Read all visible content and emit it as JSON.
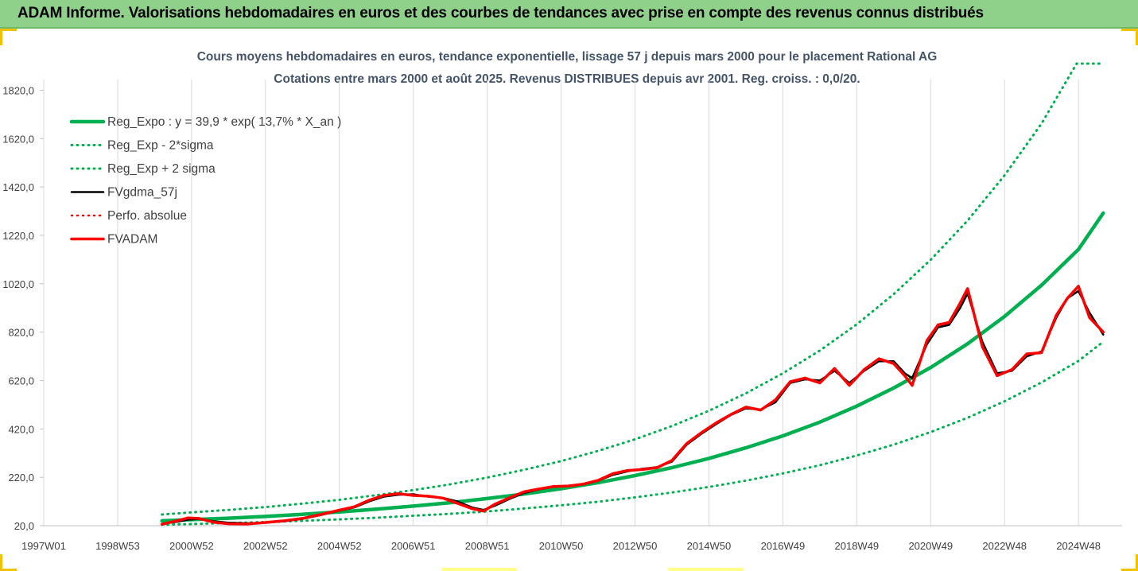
{
  "header": {
    "title": "ADAM Informe. Valorisations hebdomadaires en euros et des courbes de tendances avec prise en compte des revenus connus distribués"
  },
  "colors": {
    "header_bg": "#8fd08a",
    "green": "#00b050",
    "black": "#000000",
    "red": "#ff0000",
    "accent": "#f2c200"
  },
  "chart_data": {
    "type": "line",
    "title": "Cours moyens hebdomadaires en euros, tendance exponentielle, lissage 57 j depuis mars 2000 pour le placement Rational AG",
    "subtitle": "Cotations entre mars 2000 et août 2025. Revenus DISTRIBUES depuis avr 2001. Reg. croiss. : 0,0/20.",
    "x_tick_labels": [
      "1997W01",
      "1998W53",
      "2000W52",
      "2002W52",
      "2004W52",
      "2006W51",
      "2008W51",
      "2010W50",
      "2012W50",
      "2014W50",
      "2016W49",
      "2018W49",
      "2020W49",
      "2022W48",
      "2024W48"
    ],
    "y_tick_labels": [
      "20,0",
      "220,0",
      "420,0",
      "620,0",
      "820,0",
      "1020,0",
      "1220,0",
      "1420,0",
      "1620,0",
      "1820,0"
    ],
    "ylim": [
      20,
      1930
    ],
    "xlim": [
      1997.0,
      2025.75
    ],
    "grid": "vertical",
    "legend_position": "top-left",
    "series": [
      {
        "name": "Reg_Expo : y = 39,9 * exp( 13,7% *  X_an )",
        "color": "#00b050",
        "style": "solid",
        "width": 4.5,
        "x": [
          2000.2,
          2001,
          2002,
          2003,
          2004,
          2005,
          2006,
          2007,
          2008,
          2009,
          2010,
          2011,
          2012,
          2013,
          2014,
          2015,
          2016,
          2017,
          2018,
          2019,
          2020,
          2021,
          2022,
          2023,
          2024,
          2025,
          2025.67
        ],
        "y": [
          40,
          45,
          51,
          58,
          67,
          77,
          88,
          101,
          115,
          132,
          151,
          173,
          198,
          227,
          260,
          298,
          342,
          391,
          448,
          514,
          589,
          674,
          772,
          885,
          1014,
          1162,
          1312
        ]
      },
      {
        "name": "Reg_Exp - 2*sigma",
        "color": "#00b050",
        "style": "dotted",
        "width": 3,
        "x": [
          2000.2,
          2001,
          2002,
          2003,
          2004,
          2005,
          2006,
          2007,
          2008,
          2009,
          2010,
          2011,
          2012,
          2013,
          2014,
          2015,
          2016,
          2017,
          2018,
          2019,
          2020,
          2021,
          2022,
          2023,
          2024,
          2025,
          2025.67
        ],
        "y": [
          24,
          27,
          31,
          35,
          40,
          46,
          53,
          61,
          69,
          79,
          91,
          104,
          119,
          137,
          157,
          180,
          206,
          236,
          270,
          310,
          355,
          407,
          466,
          534,
          612,
          701,
          780
        ]
      },
      {
        "name": "Reg_Exp + 2 sigma",
        "color": "#00b050",
        "style": "dotted",
        "width": 3,
        "x": [
          2000.2,
          2001,
          2002,
          2003,
          2004,
          2005,
          2006,
          2007,
          2008,
          2009,
          2010,
          2011,
          2012,
          2013,
          2014,
          2015,
          2016,
          2017,
          2018,
          2019,
          2020,
          2021,
          2022,
          2023,
          2024,
          2024.95,
          2025.67
        ],
        "y": [
          66,
          75,
          85,
          97,
          111,
          127,
          146,
          167,
          191,
          219,
          251,
          287,
          329,
          377,
          432,
          495,
          567,
          650,
          744,
          852,
          977,
          1119,
          1281,
          1468,
          1682,
          1930,
          1930
        ]
      },
      {
        "name": "FVgdma_57j",
        "color": "#000000",
        "style": "solid",
        "width": 2.5,
        "x": [
          2000.2,
          2000.6,
          2000.9,
          2001.2,
          2001.6,
          2002.0,
          2002.5,
          2003.0,
          2003.5,
          2004.0,
          2004.5,
          2005.0,
          2005.4,
          2005.8,
          2006.2,
          2006.6,
          2007.0,
          2007.4,
          2007.8,
          2008.2,
          2008.6,
          2008.9,
          2009.2,
          2009.6,
          2010.0,
          2010.4,
          2010.8,
          2011.2,
          2011.6,
          2012.0,
          2012.4,
          2012.8,
          2013.2,
          2013.6,
          2014.0,
          2014.4,
          2014.8,
          2015.2,
          2015.6,
          2016.0,
          2016.4,
          2016.8,
          2017.2,
          2017.6,
          2018.0,
          2018.4,
          2018.8,
          2019.2,
          2019.6,
          2020.0,
          2020.3,
          2020.5,
          2020.9,
          2021.2,
          2021.5,
          2021.8,
          2022.0,
          2022.4,
          2022.8,
          2023.2,
          2023.6,
          2024.0,
          2024.4,
          2024.7,
          2025.0,
          2025.3,
          2025.67
        ],
        "y": [
          28,
          36,
          45,
          48,
          38,
          32,
          30,
          32,
          38,
          48,
          64,
          82,
          95,
          120,
          140,
          148,
          150,
          140,
          135,
          120,
          95,
          85,
          102,
          130,
          155,
          170,
          180,
          185,
          190,
          205,
          230,
          245,
          255,
          262,
          285,
          355,
          400,
          440,
          478,
          505,
          500,
          530,
          610,
          625,
          620,
          660,
          610,
          660,
          700,
          700,
          650,
          630,
          770,
          840,
          850,
          920,
          980,
          780,
          650,
          660,
          720,
          740,
          880,
          960,
          990,
          900,
          810
        ]
      },
      {
        "name": "Perfo. absolue",
        "color": "#ff0000",
        "style": "dotted",
        "width": 2.5,
        "x": [
          2000.2,
          2000.6,
          2000.9,
          2001.2,
          2001.6,
          2002.0,
          2002.5,
          2003.0,
          2003.5,
          2004.0,
          2004.5,
          2005.0,
          2005.4,
          2005.8,
          2006.2,
          2006.6,
          2007.0,
          2007.4,
          2007.8,
          2008.2,
          2008.6,
          2008.9,
          2009.2,
          2009.6,
          2010.0,
          2010.4,
          2010.8,
          2011.2,
          2011.6,
          2012.0,
          2012.4,
          2012.8,
          2013.2,
          2013.6,
          2014.0,
          2014.4,
          2014.8,
          2015.2,
          2015.6,
          2016.0,
          2016.4,
          2016.8,
          2017.2,
          2017.6,
          2018.0,
          2018.4,
          2018.8,
          2019.2,
          2019.6,
          2020.0,
          2020.3,
          2020.5,
          2020.9,
          2021.2,
          2021.5,
          2021.8,
          2022.0,
          2022.4,
          2022.8,
          2023.2,
          2023.6,
          2024.0,
          2024.4,
          2024.7,
          2025.0,
          2025.3,
          2025.67
        ],
        "y": [
          26,
          40,
          52,
          50,
          34,
          28,
          27,
          33,
          40,
          50,
          66,
          84,
          98,
          125,
          145,
          152,
          145,
          142,
          134,
          112,
          90,
          80,
          108,
          135,
          160,
          172,
          182,
          184,
          192,
          207,
          235,
          248,
          252,
          260,
          290,
          360,
          405,
          445,
          480,
          510,
          498,
          540,
          615,
          630,
          610,
          670,
          600,
          665,
          710,
          690,
          640,
          600,
          785,
          850,
          860,
          940,
          1000,
          760,
          640,
          665,
          730,
          735,
          890,
          960,
          1010,
          880,
          820
        ]
      },
      {
        "name": "FVADAM",
        "color": "#ff0000",
        "style": "solid",
        "width": 3.5,
        "x": [
          2000.2,
          2000.6,
          2000.9,
          2001.2,
          2001.6,
          2002.0,
          2002.5,
          2003.0,
          2003.5,
          2004.0,
          2004.5,
          2005.0,
          2005.4,
          2005.8,
          2006.2,
          2006.6,
          2007.0,
          2007.4,
          2007.8,
          2008.2,
          2008.6,
          2008.9,
          2009.2,
          2009.6,
          2010.0,
          2010.4,
          2010.8,
          2011.2,
          2011.6,
          2012.0,
          2012.4,
          2012.8,
          2013.2,
          2013.6,
          2014.0,
          2014.4,
          2014.8,
          2015.2,
          2015.6,
          2016.0,
          2016.4,
          2016.8,
          2017.2,
          2017.6,
          2018.0,
          2018.4,
          2018.8,
          2019.2,
          2019.6,
          2020.0,
          2020.3,
          2020.5,
          2020.9,
          2021.2,
          2021.5,
          2021.8,
          2022.0,
          2022.4,
          2022.8,
          2023.2,
          2023.6,
          2024.0,
          2024.4,
          2024.7,
          2025.0,
          2025.3,
          2025.67
        ],
        "y": [
          26,
          40,
          52,
          50,
          34,
          28,
          27,
          33,
          40,
          50,
          66,
          84,
          98,
          125,
          145,
          152,
          145,
          142,
          134,
          112,
          90,
          80,
          108,
          135,
          160,
          172,
          182,
          184,
          192,
          207,
          235,
          248,
          252,
          260,
          290,
          360,
          405,
          445,
          480,
          510,
          498,
          540,
          615,
          630,
          610,
          670,
          600,
          665,
          710,
          690,
          640,
          600,
          785,
          850,
          860,
          940,
          1000,
          760,
          640,
          665,
          730,
          735,
          890,
          960,
          1010,
          880,
          820
        ]
      }
    ]
  }
}
